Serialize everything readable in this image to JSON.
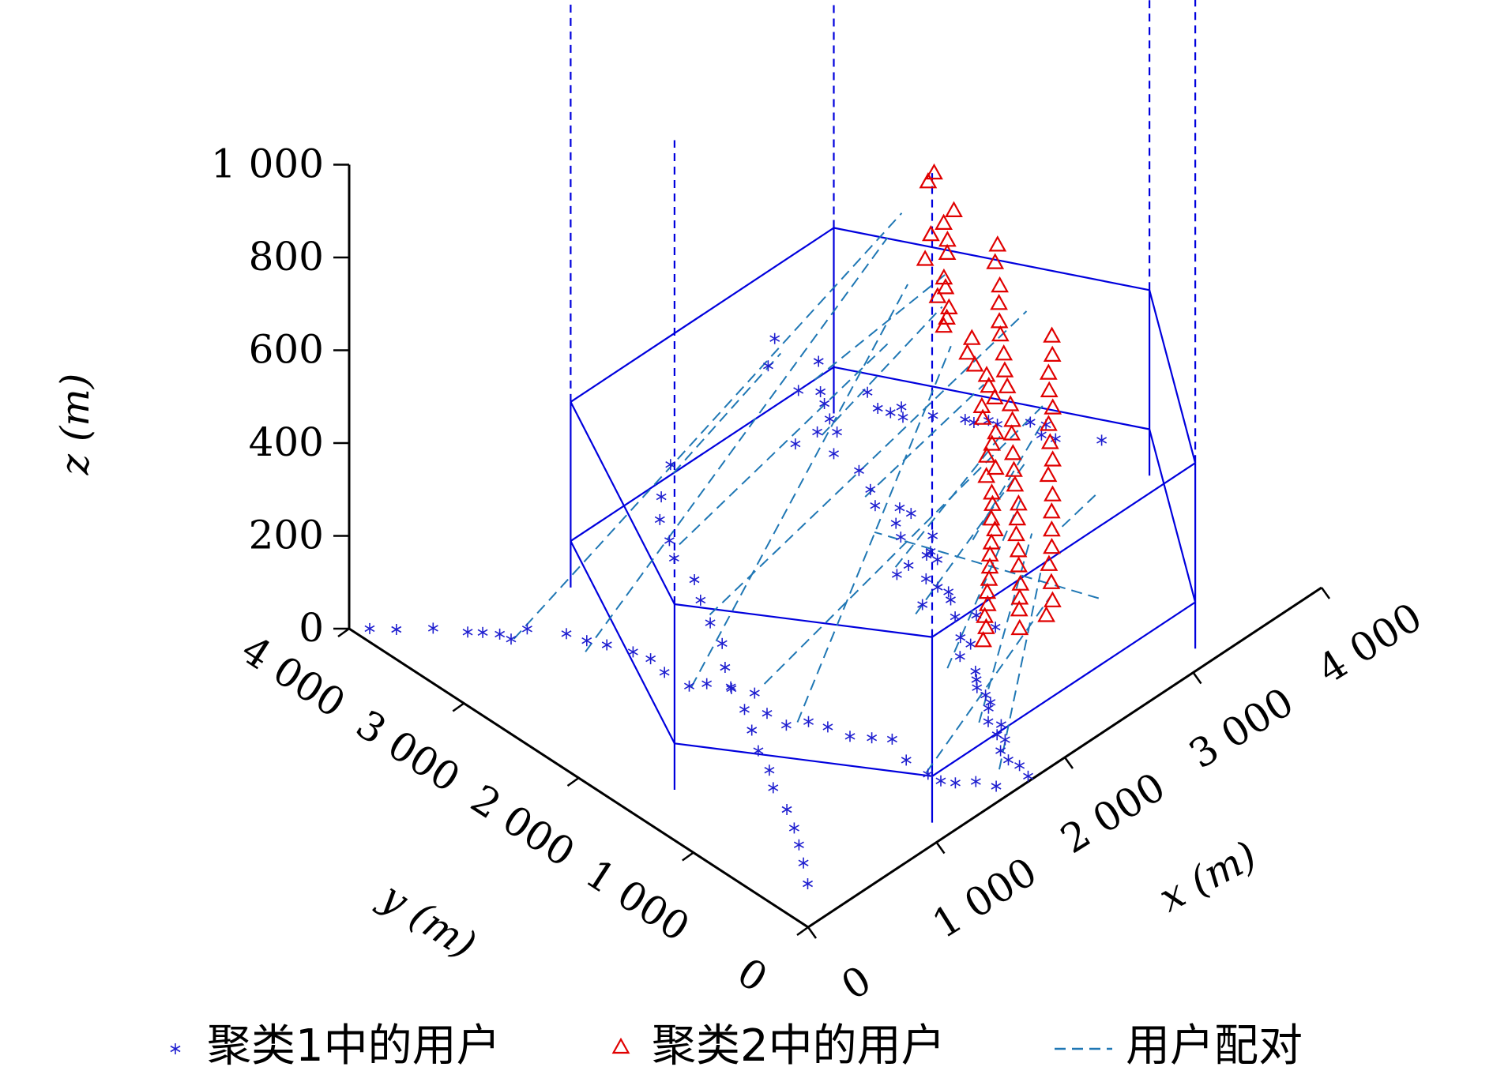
{
  "chart_data": {
    "type": "scatter",
    "view": "3d",
    "xlabel": "x (m)",
    "ylabel": "y (m)",
    "zlabel": "z (m)",
    "xlim": [
      0,
      4000
    ],
    "ylim": [
      0,
      4000
    ],
    "zlim": [
      0,
      1000
    ],
    "x_ticks": [
      "0",
      "1 000",
      "2 000",
      "3 000",
      "4 000"
    ],
    "y_ticks": [
      "0",
      "1 000",
      "2 000",
      "3 000",
      "4 000"
    ],
    "z_ticks": [
      "0",
      "200",
      "400",
      "600",
      "800",
      "1 000"
    ],
    "grid": false,
    "legend_position": "bottom",
    "colors": {
      "cluster1": "#1f1fd0",
      "cluster2": "#e00000",
      "pairing": "#1f77b4",
      "cell": "#0000dd"
    },
    "legend": [
      {
        "label": "聚类1中的用户",
        "marker": "star",
        "color": "#1f1fd0"
      },
      {
        "label": "聚类2中的用户",
        "marker": "triangle",
        "color": "#e00000"
      },
      {
        "label": "用户配对",
        "marker": "dashed-line",
        "color": "#1f77b4"
      }
    ],
    "cell": {
      "hexagon_xy": [
        [
          1100,
          150
        ],
        [
          3150,
          150
        ],
        [
          4000,
          1500
        ],
        [
          3150,
          3300
        ],
        [
          1100,
          3300
        ],
        [
          300,
          1500
        ]
      ],
      "z_levels": [
        100,
        400
      ]
    },
    "series": [
      {
        "name": "聚类1中的用户",
        "marker": "star",
        "points": [
          [
            3091,
            3749,
            100
          ],
          [
            2904,
            3597,
            100
          ],
          [
            3125,
            3405,
            100
          ],
          [
            2874,
            3300,
            100
          ],
          [
            2952,
            3195,
            100
          ],
          [
            2897,
            3099,
            100
          ],
          [
            2826,
            2974,
            100
          ],
          [
            3130,
            2985,
            100
          ],
          [
            2776,
            2854,
            100
          ],
          [
            3075,
            2833,
            100
          ],
          [
            3098,
            2748,
            100
          ],
          [
            3174,
            2738,
            100
          ],
          [
            3119,
            2663,
            100
          ],
          [
            3245,
            2542,
            100
          ],
          [
            3346,
            2375,
            100
          ],
          [
            3362,
            2316,
            100
          ],
          [
            3431,
            2266,
            100
          ],
          [
            3442,
            2201,
            100
          ],
          [
            3582,
            2071,
            100
          ],
          [
            3627,
            1985,
            100
          ],
          [
            3549,
            1937,
            100
          ],
          [
            3581,
            1849,
            100
          ],
          [
            3750,
            1637,
            100
          ],
          [
            2701,
            2942,
            100
          ],
          [
            2545,
            2958,
            100
          ],
          [
            2636,
            2725,
            100
          ],
          [
            2633,
            2502,
            100
          ],
          [
            2564,
            2326,
            100
          ],
          [
            2487,
            2198,
            100
          ],
          [
            2568,
            2075,
            100
          ],
          [
            2579,
            1988,
            100
          ],
          [
            2462,
            1989,
            100
          ],
          [
            2399,
            1876,
            100
          ],
          [
            2530,
            1745,
            100
          ],
          [
            2429,
            1650,
            100
          ],
          [
            2391,
            1642,
            100
          ],
          [
            2407,
            1566,
            100
          ],
          [
            2261,
            1654,
            100
          ],
          [
            2162,
            1645,
            100
          ],
          [
            2249,
            1488,
            100
          ],
          [
            2244,
            1381,
            100
          ],
          [
            2258,
            1303,
            100
          ],
          [
            2219,
            1240,
            100
          ],
          [
            2082,
            1333,
            100
          ],
          [
            2135,
            1107,
            100
          ],
          [
            2227,
            1025,
            100
          ],
          [
            2230,
            862,
            100
          ],
          [
            2033,
            947,
            100
          ],
          [
            2033,
            858,
            100
          ],
          [
            1919,
            823,
            100
          ],
          [
            1891,
            657,
            100
          ],
          [
            1845,
            597,
            100
          ],
          [
            1799,
            541,
            100
          ],
          [
            1788,
            454,
            100
          ],
          [
            1764,
            384,
            100
          ],
          [
            1722,
            354,
            100
          ],
          [
            1641,
            266,
            100
          ],
          [
            1673,
            189,
            100
          ],
          [
            1597,
            140,
            100
          ],
          [
            1599,
            72,
            100
          ],
          [
            1516,
            19,
            100
          ],
          [
            1491,
            -77,
            100
          ],
          [
            1501,
            -163,
            100
          ],
          [
            1471,
            -272,
            100
          ],
          [
            1288,
            -198,
            100
          ],
          [
            1237,
            -78,
            100
          ],
          [
            1150,
            3,
            100
          ],
          [
            1106,
            81,
            100
          ],
          [
            1096,
            181,
            100
          ],
          [
            1096,
            371,
            100
          ],
          [
            1166,
            572,
            100
          ],
          [
            1095,
            670,
            100
          ],
          [
            1020,
            776,
            100
          ],
          [
            990,
            936,
            100
          ],
          [
            947,
            1056,
            100
          ],
          [
            840,
            1130,
            100
          ],
          [
            836,
            1293,
            100
          ],
          [
            908,
            1482,
            100
          ],
          [
            853,
            1628,
            100
          ],
          [
            779,
            1755,
            100
          ],
          [
            697,
            1816,
            100
          ],
          [
            683,
            2016,
            100
          ],
          [
            710,
            2167,
            100
          ],
          [
            683,
            2290,
            100
          ],
          [
            624,
            2452,
            100
          ],
          [
            571,
            2568,
            100
          ],
          [
            534,
            2704,
            100
          ],
          [
            411,
            2908,
            100
          ],
          [
            288,
            2911,
            100
          ],
          [
            274,
            2994,
            100
          ],
          [
            218,
            3080,
            100
          ],
          [
            162,
            3148,
            100
          ],
          [
            52,
            3326,
            100
          ],
          [
            -98,
            3479,
            100
          ],
          [
            -196,
            3602,
            100
          ],
          [
            1940,
            3370,
            100
          ],
          [
            1713,
            3196,
            100
          ],
          [
            1572,
            3051,
            100
          ],
          [
            1485,
            2870,
            100
          ],
          [
            1398,
            2732,
            100
          ],
          [
            1349,
            2500,
            100
          ],
          [
            1251,
            2337,
            100
          ],
          [
            1154,
            2144,
            100
          ],
          [
            1077,
            1954,
            100
          ],
          [
            947,
            1783,
            100
          ],
          [
            845,
            1614,
            100
          ],
          [
            772,
            1418,
            100
          ],
          [
            677,
            1248,
            100
          ],
          [
            580,
            1083,
            100
          ],
          [
            507,
            905,
            100
          ],
          [
            418,
            772,
            100
          ],
          [
            341,
            567,
            100
          ],
          [
            260,
            412,
            100
          ],
          [
            178,
            279,
            100
          ],
          [
            88,
            139,
            100
          ],
          [
            -19,
            -18,
            100
          ]
        ]
      },
      {
        "name": "聚类2中的用户",
        "marker": "triangle",
        "points": [
          [
            3863,
            3224,
            400
          ],
          [
            3787,
            3191,
            400
          ],
          [
            3715,
            2886,
            400
          ],
          [
            3601,
            2847,
            400
          ],
          [
            3484,
            2828,
            400
          ],
          [
            3515,
            2718,
            400
          ],
          [
            3436,
            2632,
            400
          ],
          [
            3315,
            2689,
            400
          ],
          [
            3277,
            2483,
            400
          ],
          [
            3226,
            2411,
            400
          ],
          [
            3142,
            2387,
            400
          ],
          [
            3119,
            2262,
            400
          ],
          [
            3050,
            2203,
            400
          ],
          [
            2990,
            2163,
            400
          ],
          [
            3026,
            1958,
            400
          ],
          [
            2921,
            1880,
            400
          ],
          [
            2879,
            1768,
            400
          ],
          [
            2864,
            1648,
            400
          ],
          [
            2808,
            1566,
            400
          ],
          [
            2761,
            1463,
            400
          ],
          [
            2660,
            1462,
            400
          ],
          [
            2594,
            1380,
            400
          ],
          [
            2558,
            1227,
            400
          ],
          [
            2476,
            1168,
            400
          ],
          [
            2385,
            1110,
            400
          ],
          [
            2347,
            992,
            400
          ],
          [
            2263,
            978,
            400
          ],
          [
            2185,
            844,
            400
          ],
          [
            2120,
            765,
            400
          ],
          [
            2029,
            673,
            400
          ],
          [
            1979,
            586,
            400
          ],
          [
            1888,
            514,
            400
          ],
          [
            1810,
            440,
            400
          ],
          [
            1738,
            361,
            400
          ],
          [
            1662,
            283,
            400
          ],
          [
            1578,
            204,
            400
          ],
          [
            1507,
            121,
            400
          ],
          [
            1425,
            55,
            400
          ],
          [
            1364,
            -26,
            400
          ],
          [
            1275,
            -99,
            400
          ],
          [
            3680,
            2466,
            400
          ],
          [
            3566,
            2360,
            400
          ],
          [
            3446,
            2185,
            400
          ],
          [
            3339,
            2072,
            400
          ],
          [
            3232,
            1949,
            400
          ],
          [
            3157,
            1857,
            400
          ],
          [
            3057,
            1715,
            400
          ],
          [
            2961,
            1599,
            400
          ],
          [
            2876,
            1482,
            400
          ],
          [
            2782,
            1349,
            400
          ],
          [
            2696,
            1236,
            400
          ],
          [
            2613,
            1149,
            400
          ],
          [
            2501,
            1013,
            400
          ],
          [
            2405,
            897,
            400
          ],
          [
            2322,
            795,
            400
          ],
          [
            2223,
            653,
            400
          ],
          [
            2130,
            560,
            400
          ],
          [
            2033,
            460,
            400
          ],
          [
            1945,
            344,
            400
          ],
          [
            1857,
            242,
            400
          ],
          [
            1755,
            113,
            400
          ],
          [
            1669,
            23,
            400
          ],
          [
            1597,
            -53,
            400
          ],
          [
            1488,
            -179,
            400
          ],
          [
            3349,
            1622,
            400
          ],
          [
            3237,
            1493,
            400
          ],
          [
            3116,
            1391,
            400
          ],
          [
            3014,
            1271,
            400
          ],
          [
            2926,
            1141,
            400
          ],
          [
            2812,
            1050,
            400
          ],
          [
            2710,
            923,
            400
          ],
          [
            2617,
            796,
            400
          ],
          [
            2508,
            713,
            400
          ],
          [
            2409,
            564,
            400
          ],
          [
            2304,
            455,
            400
          ],
          [
            2197,
            335,
            400
          ],
          [
            2094,
            219,
            400
          ],
          [
            1982,
            118,
            400
          ],
          [
            1883,
            -13,
            400
          ],
          [
            1780,
            -139,
            400
          ],
          [
            1668,
            -210,
            400
          ]
        ]
      }
    ],
    "pairings": [
      [
        [
          3000,
          3300,
          100
        ],
        [
          3300,
          2500,
          400
        ]
      ],
      [
        [
          2700,
          2900,
          100
        ],
        [
          3100,
          2300,
          400
        ]
      ],
      [
        [
          2500,
          2300,
          100
        ],
        [
          2800,
          1600,
          400
        ]
      ],
      [
        [
          2200,
          1700,
          100
        ],
        [
          2600,
          1200,
          400
        ]
      ],
      [
        [
          2000,
          1300,
          100
        ],
        [
          2500,
          900,
          400
        ]
      ],
      [
        [
          1800,
          800,
          100
        ],
        [
          2300,
          700,
          400
        ]
      ],
      [
        [
          1600,
          300,
          100
        ],
        [
          2100,
          400,
          400
        ]
      ],
      [
        [
          1400,
          -100,
          100
        ],
        [
          1900,
          100,
          400
        ]
      ],
      [
        [
          1100,
          200,
          100
        ],
        [
          1800,
          -100,
          400
        ]
      ],
      [
        [
          900,
          1100,
          100
        ],
        [
          2900,
          2000,
          400
        ]
      ],
      [
        [
          700,
          1800,
          100
        ],
        [
          3100,
          2600,
          400
        ]
      ],
      [
        [
          500,
          2500,
          100
        ],
        [
          3300,
          3000,
          400
        ]
      ],
      [
        [
          300,
          2900,
          100
        ],
        [
          3500,
          3100,
          400
        ]
      ],
      [
        [
          1900,
          3300,
          100
        ],
        [
          2200,
          2700,
          400
        ]
      ],
      [
        [
          1500,
          2800,
          100
        ],
        [
          2700,
          2300,
          400
        ]
      ],
      [
        [
          1200,
          2200,
          100
        ],
        [
          3400,
          1900,
          400
        ]
      ],
      [
        [
          1000,
          1500,
          100
        ],
        [
          2900,
          1200,
          400
        ]
      ],
      [
        [
          3600,
          2000,
          100
        ],
        [
          1800,
          600,
          400
        ]
      ],
      [
        [
          3400,
          1300,
          100
        ],
        [
          2200,
          300,
          400
        ]
      ],
      [
        [
          2800,
          600,
          100
        ],
        [
          1500,
          1100,
          400
        ]
      ]
    ]
  }
}
